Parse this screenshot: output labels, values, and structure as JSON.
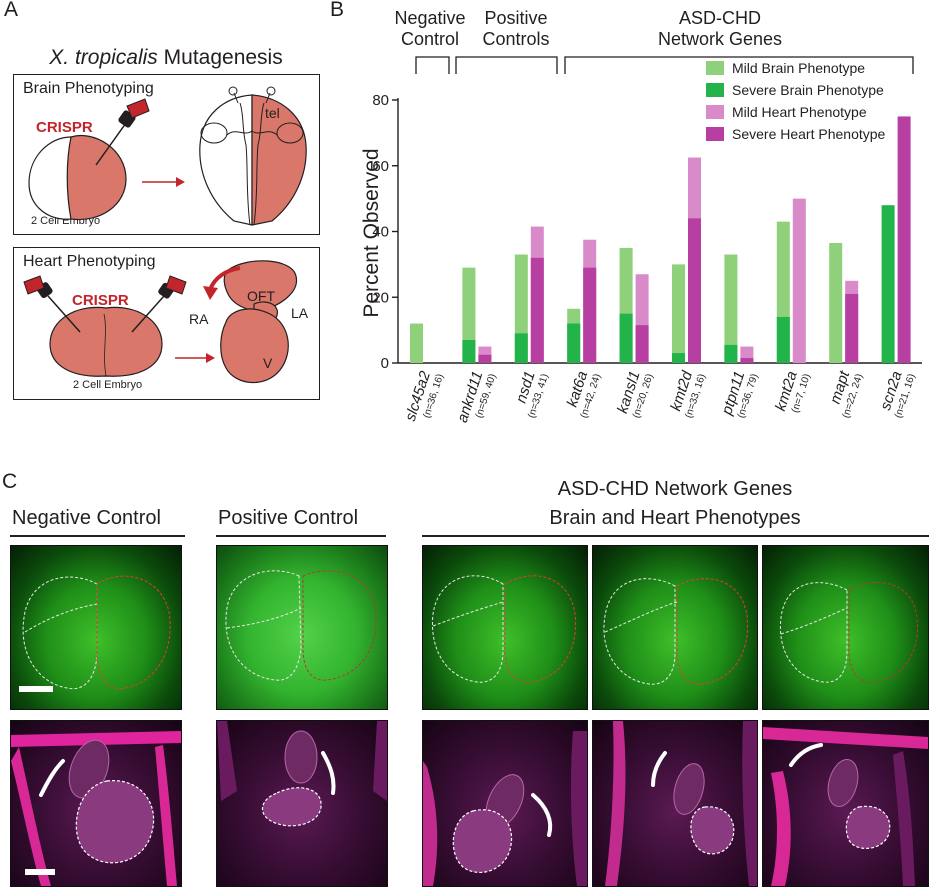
{
  "panelA": {
    "letter": "A",
    "title_italic": "X. tropicalis",
    "title_rest": " Mutagenesis",
    "brain_box": {
      "title": "Brain Phenotyping",
      "crispr": "CRISPR",
      "embryo_label": "2 Cell Embryo",
      "tel_label": "tel"
    },
    "heart_box": {
      "title": "Heart Phenotyping",
      "crispr": "CRISPR",
      "embryo_label": "2 Cell Embryo",
      "oft_label": "OFT",
      "ra_label": "RA",
      "la_label": "LA",
      "v_label": "V"
    }
  },
  "panelB": {
    "letter": "B",
    "group_negative": [
      "Negative",
      "Control"
    ],
    "group_positive": [
      "Positive",
      "Controls"
    ],
    "group_network": [
      "ASD-CHD",
      "Network Genes"
    ],
    "legend": [
      {
        "label": "Mild Brain Phenotype",
        "color": "#8fd07a"
      },
      {
        "label": "Severe Brain Phenotype",
        "color": "#22b34a"
      },
      {
        "label": "Mild Heart Phenotype",
        "color": "#d88ac9"
      },
      {
        "label": "Severe Heart Phenotype",
        "color": "#b73fa1"
      }
    ]
  },
  "chart_data": {
    "type": "bar",
    "ylabel": "Percent Observed",
    "ylim": [
      0,
      80
    ],
    "yticks": [
      0,
      20,
      40,
      60,
      80
    ],
    "genes": [
      {
        "name": "slc45a2",
        "n": "(n=36, 16)",
        "mild_brain": 12,
        "severe_brain": 0,
        "mild_heart": 0,
        "severe_heart": 0
      },
      {
        "name": "ankrd11",
        "n": "(n=59, 40)",
        "mild_brain": 29,
        "severe_brain": 7,
        "mild_heart": 5,
        "severe_heart": 2.5
      },
      {
        "name": "nsd1",
        "n": "(n=33, 41)",
        "mild_brain": 33,
        "severe_brain": 9,
        "mild_heart": 41.5,
        "severe_heart": 32
      },
      {
        "name": "kat6a",
        "n": "(n=42, 24)",
        "mild_brain": 16.5,
        "severe_brain": 12,
        "mild_heart": 37.5,
        "severe_heart": 29
      },
      {
        "name": "kansl1",
        "n": "(n=20, 26)",
        "mild_brain": 35,
        "severe_brain": 15,
        "mild_heart": 27,
        "severe_heart": 11.5
      },
      {
        "name": "kmt2d",
        "n": "(n=33, 16)",
        "mild_brain": 30,
        "severe_brain": 3,
        "mild_heart": 62.5,
        "severe_heart": 44
      },
      {
        "name": "ptpn11",
        "n": "(n=36, 79)",
        "mild_brain": 33,
        "severe_brain": 5.5,
        "mild_heart": 5,
        "severe_heart": 1.5
      },
      {
        "name": "kmt2a",
        "n": "(n=7, 10)",
        "mild_brain": 43,
        "severe_brain": 14,
        "mild_heart": 50,
        "severe_heart": 0
      },
      {
        "name": "mapt",
        "n": "(n=22, 24)",
        "mild_brain": 36.5,
        "severe_brain": 0,
        "mild_heart": 25,
        "severe_heart": 21
      },
      {
        "name": "scn2a",
        "n": "(n=21, 16)",
        "mild_brain": 0,
        "severe_brain": 48,
        "mild_heart": 0,
        "severe_heart": 75
      }
    ]
  },
  "panelC": {
    "letter": "C",
    "negative_title": "Negative Control",
    "positive_title": "Positive Control",
    "network_title_1": "ASD-CHD Network Genes",
    "network_title_2": "Brain and Heart Phenotypes"
  }
}
